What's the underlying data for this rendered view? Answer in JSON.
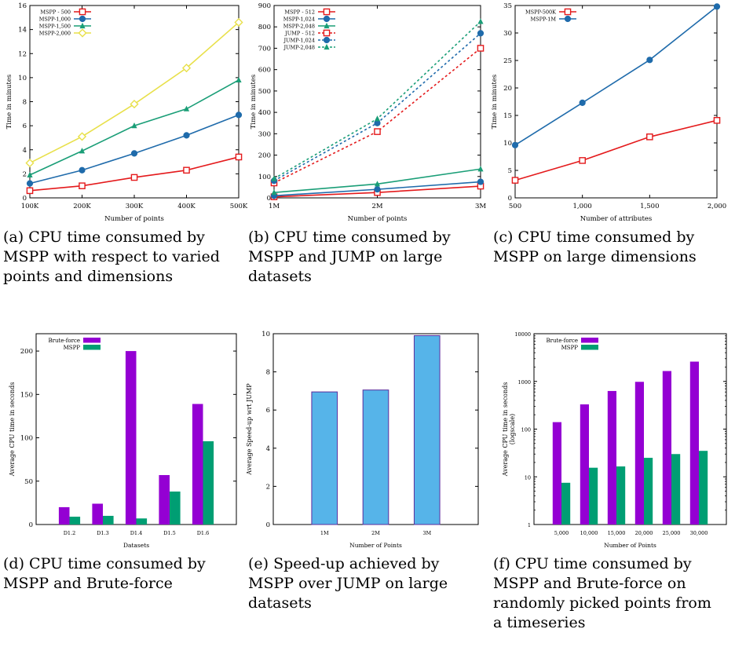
{
  "figures": [
    {
      "id": "a",
      "caption_lines": [
        "(a) CPU time consumed by",
        "MSPP with respect to varied",
        "points and dimensions"
      ]
    },
    {
      "id": "b",
      "caption_lines": [
        "(b) CPU time consumed by",
        "MSPP and JUMP on large",
        "datasets"
      ]
    },
    {
      "id": "c",
      "caption_lines": [
        "(c) CPU time consumed by",
        "MSPP on large dimensions"
      ]
    },
    {
      "id": "d",
      "caption_lines": [
        "(d) CPU time consumed by",
        "MSPP and Brute-force"
      ]
    },
    {
      "id": "e",
      "caption_lines": [
        "(e) Speed-up achieved by",
        "MSPP over JUMP on large",
        "datasets"
      ]
    },
    {
      "id": "f",
      "caption_lines": [
        "(f) CPU time consumed by",
        "MSPP and Brute-force on",
        "randomly picked points from",
        "a timeseries"
      ]
    }
  ],
  "chart_data": [
    {
      "id": "a",
      "type": "line",
      "categories": [
        "100K",
        "200K",
        "300K",
        "400K",
        "500K"
      ],
      "xlabel": "Number of points",
      "ylabel": "Time in minutes",
      "ylim": [
        0,
        16
      ],
      "yticks": [
        0,
        2,
        4,
        6,
        8,
        10,
        12,
        14,
        16
      ],
      "legend_position": "top-left",
      "grid": false,
      "series": [
        {
          "name": "MSPP - 500",
          "color": "#e41a1c",
          "marker": "square",
          "values": [
            0.6,
            1.0,
            1.7,
            2.3,
            3.4
          ]
        },
        {
          "name": "MSPP-1,000",
          "color": "#1f6bab",
          "marker": "circle",
          "values": [
            1.2,
            2.3,
            3.7,
            5.2,
            6.9
          ]
        },
        {
          "name": "MSPP-1,500",
          "color": "#1a9e77",
          "marker": "triangle",
          "values": [
            1.9,
            3.9,
            6.0,
            7.4,
            9.8
          ]
        },
        {
          "name": "MSPP-2,000",
          "color": "#e8e04a",
          "marker": "diamond",
          "values": [
            2.9,
            5.1,
            7.8,
            10.8,
            14.6
          ]
        }
      ]
    },
    {
      "id": "b",
      "type": "line",
      "categories": [
        "1M",
        "2M",
        "3M"
      ],
      "xlabel": "Number of points",
      "ylabel": "Time in minutes",
      "ylim": [
        0,
        900
      ],
      "yticks": [
        0,
        100,
        200,
        300,
        400,
        500,
        600,
        700,
        800,
        900
      ],
      "legend_position": "top-left",
      "grid": false,
      "series": [
        {
          "name": "MSPP - 512",
          "color": "#e41a1c",
          "marker": "square",
          "dashed": false,
          "values": [
            5,
            25,
            55
          ]
        },
        {
          "name": "MSPP-1,024",
          "color": "#1f6bab",
          "marker": "circle",
          "dashed": false,
          "values": [
            10,
            40,
            75
          ]
        },
        {
          "name": "MSPP-2,048",
          "color": "#1a9e77",
          "marker": "triangle",
          "dashed": false,
          "values": [
            25,
            65,
            135
          ]
        },
        {
          "name": "JUMP - 512",
          "color": "#e41a1c",
          "marker": "square",
          "dashed": true,
          "values": [
            70,
            310,
            700
          ]
        },
        {
          "name": "JUMP-1,024",
          "color": "#1f6bab",
          "marker": "circle",
          "dashed": true,
          "values": [
            80,
            350,
            770
          ]
        },
        {
          "name": "JUMP-2,048",
          "color": "#1a9e77",
          "marker": "triangle",
          "dashed": true,
          "values": [
            90,
            370,
            825
          ]
        }
      ]
    },
    {
      "id": "c",
      "type": "line",
      "categories": [
        "500",
        "1,000",
        "1,500",
        "2,000"
      ],
      "xlabel": "Number of attributes",
      "ylabel": "Time in minutes",
      "ylim": [
        0,
        35
      ],
      "yticks": [
        0,
        5,
        10,
        15,
        20,
        25,
        30,
        35
      ],
      "legend_position": "top-left",
      "grid": false,
      "series": [
        {
          "name": "MSPP-500K",
          "color": "#e41a1c",
          "marker": "square",
          "values": [
            3.2,
            6.8,
            11.1,
            14.1
          ]
        },
        {
          "name": "MSPP-1M",
          "color": "#1f6bab",
          "marker": "circle",
          "values": [
            9.6,
            17.3,
            25.1,
            34.8
          ]
        }
      ]
    },
    {
      "id": "d",
      "type": "bar",
      "categories": [
        "D1.2",
        "D1.3",
        "D1.4",
        "D1.5",
        "D1.6"
      ],
      "xlabel": "Datasets",
      "ylabel": "Average CPU time in seconds",
      "ylim": [
        0,
        220
      ],
      "yticks": [
        0,
        50,
        100,
        150,
        200
      ],
      "legend_position": "top-left",
      "grid": false,
      "series": [
        {
          "name": "Brute-force",
          "color": "#9400d3",
          "values": [
            20,
            24,
            200,
            57,
            139
          ]
        },
        {
          "name": "MSPP",
          "color": "#009e73",
          "values": [
            9,
            10,
            7,
            38,
            96
          ]
        }
      ]
    },
    {
      "id": "e",
      "type": "bar",
      "categories": [
        "1M",
        "2M",
        "3M"
      ],
      "xlabel": "Number of Points",
      "ylabel": "Average Speed-up wrt JUMP",
      "ylim": [
        0,
        10
      ],
      "yticks": [
        0,
        2,
        4,
        6,
        8,
        10
      ],
      "grid": false,
      "series": [
        {
          "color": "#56b4e9",
          "values": [
            6.95,
            7.05,
            9.9
          ]
        }
      ]
    },
    {
      "id": "f",
      "type": "bar",
      "log_scale": true,
      "categories": [
        "5,000",
        "10,000",
        "15,000",
        "20,000",
        "25,000",
        "30,000"
      ],
      "xlabel": "Number of Points",
      "ylabel": "Average CPU time in seconds (logscale)",
      "ylim": [
        1,
        10000
      ],
      "yticks": [
        1,
        10,
        100,
        1000,
        10000
      ],
      "ytick_labels": [
        "1",
        "10",
        "100",
        "1000",
        "10000"
      ],
      "legend_position": "top-left",
      "grid": false,
      "series": [
        {
          "name": "Brute-force",
          "color": "#9400d3",
          "values": [
            140,
            330,
            630,
            980,
            1650,
            2600
          ]
        },
        {
          "name": "MSPP",
          "color": "#009e73",
          "values": [
            7.5,
            15.5,
            16.5,
            25,
            30,
            35
          ]
        }
      ]
    }
  ]
}
